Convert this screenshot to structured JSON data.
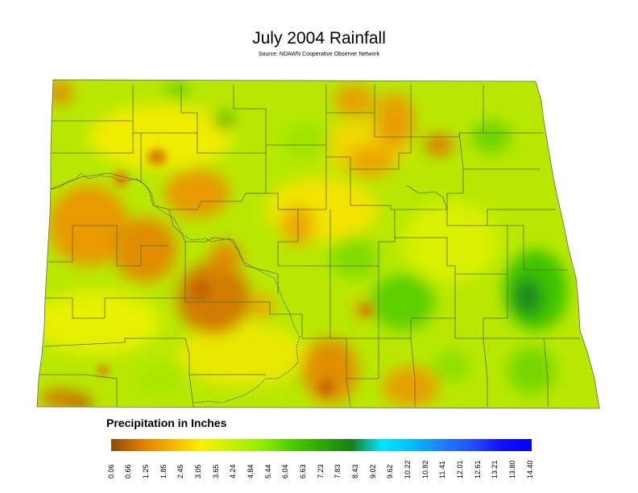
{
  "title": "July 2004 Rainfall",
  "subtitle": "Source: NDAWN Cooperative Observer Network",
  "legend": {
    "title": "Precipitation in Inches",
    "labels": [
      "0.06",
      "0.66",
      "1.25",
      "1.85",
      "2.45",
      "3.05",
      "3.65",
      "4.24",
      "4.84",
      "5.44",
      "6.04",
      "6.63",
      "7.23",
      "7.83",
      "8.43",
      "9.02",
      "9.62",
      "10.22",
      "10.82",
      "11.41",
      "12.01",
      "12.61",
      "13.21",
      "13.80",
      "14.40"
    ],
    "stops": [
      "#8b4a0a",
      "#e07b00",
      "#f7b100",
      "#f7f000",
      "#c8f000",
      "#90ee00",
      "#4ccd00",
      "#2ea800",
      "#1a7f1a",
      "#00e5ff",
      "#00bfff",
      "#1f7fff",
      "#2050ff",
      "#1010ff",
      "#0000ff"
    ]
  },
  "map_colors": {
    "base": "#b8e800",
    "dry": "#e89a00",
    "very_dry": "#c56a08",
    "wet": "#3cc400",
    "very_wet": "#0f8a0f",
    "county_line": "#5a6a4a"
  }
}
